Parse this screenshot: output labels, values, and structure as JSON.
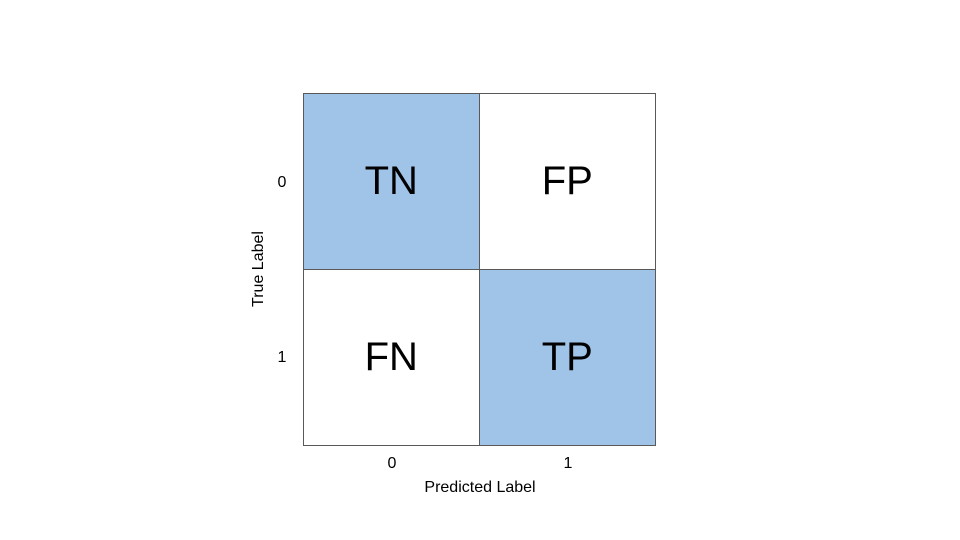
{
  "matrix": {
    "x_axis_label": "Predicted Label",
    "y_axis_label": "True Label",
    "x_ticks": [
      "0",
      "1"
    ],
    "y_ticks": [
      "0",
      "1"
    ],
    "cells": [
      [
        {
          "label": "TN",
          "highlighted": true
        },
        {
          "label": "FP",
          "highlighted": false
        }
      ],
      [
        {
          "label": "FN",
          "highlighted": false
        },
        {
          "label": "TP",
          "highlighted": true
        }
      ]
    ],
    "colors": {
      "highlight": "#a0c4e8",
      "plain": "#ffffff",
      "border": "#595959"
    }
  }
}
